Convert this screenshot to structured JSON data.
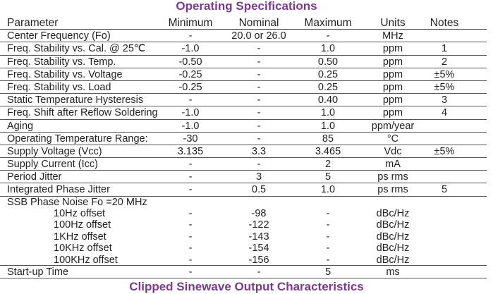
{
  "title": "Operating Specifications",
  "headers": {
    "parameter": "Parameter",
    "minimum": "Minimum",
    "nominal": "Nominal",
    "maximum": "Maximum",
    "units": "Units",
    "notes": "Notes"
  },
  "rows": [
    {
      "parameter": "Center Frequency (Fo)",
      "minimum": "-",
      "nominal": "20.0 or 26.0",
      "maximum": "-",
      "units": "MHz",
      "notes": ""
    },
    {
      "parameter": "Freq. Stability vs. Cal. @ 25℃",
      "minimum": "-1.0",
      "nominal": "-",
      "maximum": "1.0",
      "units": "ppm",
      "notes": "1"
    },
    {
      "parameter": "Freq. Stability vs. Temp.",
      "minimum": "-0.50",
      "nominal": "-",
      "maximum": "0.50",
      "units": "ppm",
      "notes": "2"
    },
    {
      "parameter": "Freq. Stability vs. Voltage",
      "minimum": "-0.25",
      "nominal": "-",
      "maximum": "0.25",
      "units": "ppm",
      "notes": "±5%"
    },
    {
      "parameter": "Freq. Stability vs. Load",
      "minimum": "-0.25",
      "nominal": "-",
      "maximum": "0.25",
      "units": "ppm",
      "notes": "±5%"
    },
    {
      "parameter": "Static Temperature Hysteresis",
      "minimum": "-",
      "nominal": "-",
      "maximum": "0.40",
      "units": "ppm",
      "notes": "3"
    },
    {
      "parameter": "Freq. Shift after Reflow Soldering",
      "minimum": "-1.0",
      "nominal": "-",
      "maximum": "1.0",
      "units": "ppm",
      "notes": "4"
    },
    {
      "parameter": "Aging",
      "minimum": "-1.0",
      "nominal": "-",
      "maximum": "1.0",
      "units": "ppm/year",
      "notes": ""
    },
    {
      "parameter": "Operating Temperature Range:",
      "minimum": "-30",
      "nominal": "-",
      "maximum": "85",
      "units": "°C",
      "notes": ""
    },
    {
      "parameter": "Supply Voltage (Vcc)",
      "minimum": "3.135",
      "nominal": "3.3",
      "maximum": "3.465",
      "units": "Vdc",
      "notes": "±5%"
    },
    {
      "parameter": "Supply Current (Icc)",
      "minimum": "-",
      "nominal": "-",
      "maximum": "2",
      "units": "mA",
      "notes": ""
    },
    {
      "parameter": "Period Jitter",
      "minimum": "-",
      "nominal": "3",
      "maximum": "5",
      "units": "ps rms",
      "notes": ""
    },
    {
      "parameter": "Integrated Phase Jitter",
      "minimum": "-",
      "nominal": "0.5",
      "maximum": "1.0",
      "units": "ps rms",
      "notes": "5"
    }
  ],
  "phase_noise": {
    "label": "SSB Phase Noise Fo =20 MHz",
    "rows": [
      {
        "parameter": "10Hz offset",
        "minimum": "-",
        "nominal": "-98",
        "maximum": "-",
        "units": "dBc/Hz"
      },
      {
        "parameter": "100Hz offset",
        "minimum": "-",
        "nominal": "-122",
        "maximum": "-",
        "units": "dBc/Hz"
      },
      {
        "parameter": "1KHz offset",
        "minimum": "-",
        "nominal": "-143",
        "maximum": "-",
        "units": "dBc/Hz"
      },
      {
        "parameter": "10KHz offset",
        "minimum": "-",
        "nominal": "-154",
        "maximum": "-",
        "units": "dBc/Hz"
      },
      {
        "parameter": "100KHz offset",
        "minimum": "-",
        "nominal": "-156",
        "maximum": "-",
        "units": "dBc/Hz"
      }
    ]
  },
  "startup": {
    "parameter": "Start-up Time",
    "minimum": "-",
    "nominal": "-",
    "maximum": "5",
    "units": "ms",
    "notes": ""
  },
  "next_section_title": "Clipped Sinewave Output Characteristics",
  "colors": {
    "heading": "#7a3b8c",
    "text": "#222222"
  }
}
